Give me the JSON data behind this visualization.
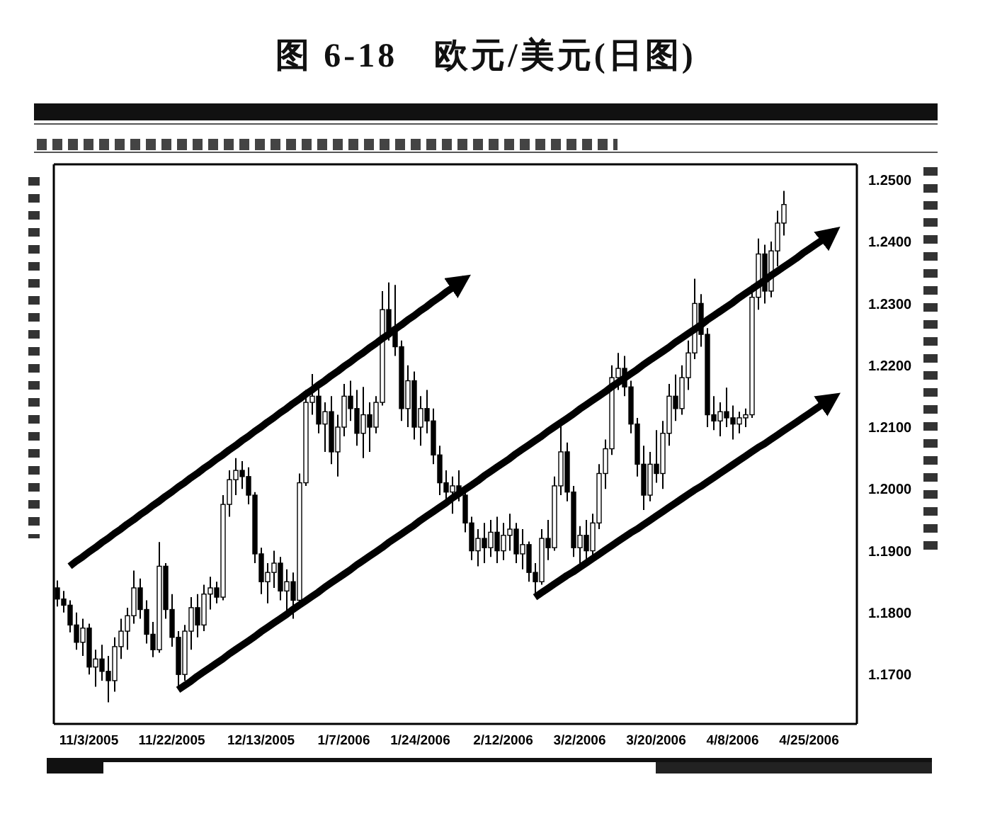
{
  "chart_data": {
    "type": "candlestick",
    "title": "图 6-18　欧元/美元(日图)",
    "color": "#000000",
    "categories": [
      null,
      null,
      null,
      null,
      null,
      "11/3/2005",
      null,
      null,
      null,
      null,
      null,
      null,
      null,
      null,
      null,
      null,
      null,
      null,
      "11/22/2005",
      null,
      null,
      null,
      null,
      null,
      null,
      null,
      null,
      null,
      null,
      null,
      null,
      null,
      "12/13/2005",
      null,
      null,
      null,
      null,
      null,
      null,
      null,
      null,
      null,
      null,
      null,
      null,
      "1/7/2006",
      null,
      null,
      null,
      null,
      null,
      null,
      null,
      null,
      null,
      null,
      null,
      "1/24/2006",
      null,
      null,
      null,
      null,
      null,
      null,
      null,
      null,
      null,
      null,
      null,
      null,
      "2/12/2006",
      null,
      null,
      null,
      null,
      null,
      null,
      null,
      null,
      null,
      null,
      null,
      "3/2/2006",
      null,
      null,
      null,
      null,
      null,
      null,
      null,
      null,
      null,
      null,
      null,
      "3/20/2006",
      null,
      null,
      null,
      null,
      null,
      null,
      null,
      null,
      null,
      null,
      null,
      "4/8/2006",
      null,
      null,
      null,
      null,
      null,
      null,
      null,
      null,
      null,
      null,
      null,
      "4/25/2006",
      null,
      null,
      null,
      null,
      null,
      null,
      null
    ],
    "ohlc": [
      [
        1.184,
        1.1852,
        1.181,
        1.1822
      ],
      [
        1.1822,
        1.1835,
        1.18,
        1.1812
      ],
      [
        1.1812,
        1.182,
        1.1768,
        1.178
      ],
      [
        1.178,
        1.18,
        1.174,
        1.1752
      ],
      [
        1.1752,
        1.179,
        1.173,
        1.1775
      ],
      [
        1.1775,
        1.1782,
        1.17,
        1.1712
      ],
      [
        1.1712,
        1.174,
        1.168,
        1.1725
      ],
      [
        1.1725,
        1.1748,
        1.169,
        1.1705
      ],
      [
        1.1705,
        1.173,
        1.1655,
        1.169
      ],
      [
        1.169,
        1.176,
        1.1672,
        1.1745
      ],
      [
        1.1745,
        1.179,
        1.1725,
        1.177
      ],
      [
        1.177,
        1.1808,
        1.174,
        1.1795
      ],
      [
        1.1795,
        1.1868,
        1.1782,
        1.184
      ],
      [
        1.184,
        1.1855,
        1.179,
        1.1805
      ],
      [
        1.1805,
        1.182,
        1.175,
        1.1765
      ],
      [
        1.1765,
        1.1785,
        1.1728,
        1.174
      ],
      [
        1.174,
        1.1914,
        1.1735,
        1.1875
      ],
      [
        1.1875,
        1.188,
        1.179,
        1.1805
      ],
      [
        1.1805,
        1.183,
        1.1745,
        1.176
      ],
      [
        1.176,
        1.177,
        1.1677,
        1.17
      ],
      [
        1.17,
        1.178,
        1.169,
        1.177
      ],
      [
        1.177,
        1.1825,
        1.174,
        1.1808
      ],
      [
        1.1808,
        1.183,
        1.176,
        1.178
      ],
      [
        1.178,
        1.1845,
        1.177,
        1.183
      ],
      [
        1.183,
        1.1858,
        1.1805,
        1.184
      ],
      [
        1.184,
        1.185,
        1.1815,
        1.1825
      ],
      [
        1.1825,
        1.199,
        1.182,
        1.1975
      ],
      [
        1.1975,
        1.203,
        1.1955,
        1.2015
      ],
      [
        1.2015,
        1.205,
        1.199,
        1.203
      ],
      [
        1.203,
        1.2045,
        1.2,
        1.202
      ],
      [
        1.202,
        1.2035,
        1.1975,
        1.199
      ],
      [
        1.199,
        1.1995,
        1.188,
        1.1895
      ],
      [
        1.1895,
        1.1905,
        1.183,
        1.185
      ],
      [
        1.185,
        1.188,
        1.1815,
        1.1865
      ],
      [
        1.1865,
        1.19,
        1.184,
        1.188
      ],
      [
        1.188,
        1.189,
        1.182,
        1.1835
      ],
      [
        1.1835,
        1.187,
        1.18,
        1.185
      ],
      [
        1.185,
        1.1865,
        1.179,
        1.182
      ],
      [
        1.182,
        1.2025,
        1.1815,
        1.201
      ],
      [
        1.201,
        1.216,
        1.2005,
        1.214
      ],
      [
        1.214,
        1.2186,
        1.212,
        1.215
      ],
      [
        1.215,
        1.2165,
        1.209,
        1.2105
      ],
      [
        1.2105,
        1.214,
        1.206,
        1.2125
      ],
      [
        1.2125,
        1.215,
        1.204,
        1.206
      ],
      [
        1.206,
        1.212,
        1.202,
        1.21
      ],
      [
        1.21,
        1.217,
        1.2085,
        1.215
      ],
      [
        1.215,
        1.2175,
        1.211,
        1.213
      ],
      [
        1.213,
        1.216,
        1.207,
        1.209
      ],
      [
        1.209,
        1.2165,
        1.205,
        1.212
      ],
      [
        1.212,
        1.214,
        1.206,
        1.21
      ],
      [
        1.21,
        1.215,
        1.209,
        1.214
      ],
      [
        1.214,
        1.232,
        1.2135,
        1.229
      ],
      [
        1.229,
        1.2334,
        1.224,
        1.2255
      ],
      [
        1.2255,
        1.233,
        1.2215,
        1.223
      ],
      [
        1.223,
        1.224,
        1.211,
        1.213
      ],
      [
        1.213,
        1.22,
        1.21,
        1.2175
      ],
      [
        1.2175,
        1.219,
        1.208,
        1.21
      ],
      [
        1.21,
        1.215,
        1.207,
        1.213
      ],
      [
        1.213,
        1.216,
        1.209,
        1.211
      ],
      [
        1.211,
        1.213,
        1.204,
        1.2055
      ],
      [
        1.2055,
        1.207,
        1.199,
        1.201
      ],
      [
        1.201,
        1.203,
        1.1975,
        1.1995
      ],
      [
        1.1995,
        1.202,
        1.196,
        1.2005
      ],
      [
        1.2005,
        1.203,
        1.198,
        1.199
      ],
      [
        1.199,
        1.2,
        1.193,
        1.1945
      ],
      [
        1.1945,
        1.1955,
        1.1885,
        1.19
      ],
      [
        1.19,
        1.1935,
        1.1875,
        1.192
      ],
      [
        1.192,
        1.1945,
        1.188,
        1.1905
      ],
      [
        1.1905,
        1.195,
        1.189,
        1.193
      ],
      [
        1.193,
        1.1955,
        1.188,
        1.19
      ],
      [
        1.19,
        1.1945,
        1.1885,
        1.1925
      ],
      [
        1.1925,
        1.196,
        1.19,
        1.1935
      ],
      [
        1.1935,
        1.1945,
        1.188,
        1.1895
      ],
      [
        1.1895,
        1.1935,
        1.187,
        1.191
      ],
      [
        1.191,
        1.1915,
        1.185,
        1.1865
      ],
      [
        1.1865,
        1.188,
        1.183,
        1.185
      ],
      [
        1.185,
        1.1935,
        1.1845,
        1.192
      ],
      [
        1.192,
        1.195,
        1.1885,
        1.1905
      ],
      [
        1.1905,
        1.202,
        1.19,
        1.2005
      ],
      [
        1.2005,
        1.2102,
        1.199,
        1.206
      ],
      [
        1.206,
        1.2075,
        1.198,
        1.1995
      ],
      [
        1.1995,
        1.2005,
        1.189,
        1.1905
      ],
      [
        1.1905,
        1.194,
        1.1875,
        1.1925
      ],
      [
        1.1925,
        1.195,
        1.188,
        1.19
      ],
      [
        1.19,
        1.196,
        1.189,
        1.1945
      ],
      [
        1.1945,
        1.204,
        1.1935,
        1.2025
      ],
      [
        1.2025,
        1.208,
        1.2,
        1.2065
      ],
      [
        1.2065,
        1.22,
        1.2055,
        1.218
      ],
      [
        1.218,
        1.222,
        1.216,
        1.2195
      ],
      [
        1.2195,
        1.2215,
        1.215,
        1.2165
      ],
      [
        1.2165,
        1.2175,
        1.209,
        1.2105
      ],
      [
        1.2105,
        1.2115,
        1.202,
        1.204
      ],
      [
        1.204,
        1.207,
        1.1966,
        1.199
      ],
      [
        1.199,
        1.206,
        1.198,
        1.204
      ],
      [
        1.204,
        1.2095,
        1.201,
        1.2025
      ],
      [
        1.2025,
        1.211,
        1.2,
        1.209
      ],
      [
        1.209,
        1.217,
        1.207,
        1.215
      ],
      [
        1.215,
        1.2185,
        1.211,
        1.213
      ],
      [
        1.213,
        1.22,
        1.212,
        1.218
      ],
      [
        1.218,
        1.224,
        1.216,
        1.222
      ],
      [
        1.222,
        1.234,
        1.221,
        1.23
      ],
      [
        1.23,
        1.2315,
        1.223,
        1.225
      ],
      [
        1.225,
        1.226,
        1.21,
        1.212
      ],
      [
        1.212,
        1.215,
        1.2095,
        1.211
      ],
      [
        1.211,
        1.214,
        1.2085,
        1.2125
      ],
      [
        1.2125,
        1.2164,
        1.21,
        1.2115
      ],
      [
        1.2115,
        1.2135,
        1.208,
        1.2105
      ],
      [
        1.2105,
        1.2125,
        1.209,
        1.2115
      ],
      [
        1.2115,
        1.213,
        1.21,
        1.212
      ],
      [
        1.212,
        1.233,
        1.2115,
        1.231
      ],
      [
        1.231,
        1.2405,
        1.229,
        1.238
      ],
      [
        1.238,
        1.2395,
        1.23,
        1.232
      ],
      [
        1.232,
        1.24,
        1.231,
        1.2385
      ],
      [
        1.2385,
        1.245,
        1.236,
        1.243
      ],
      [
        1.243,
        1.2482,
        1.241,
        1.246
      ],
      null,
      null,
      null,
      null,
      null,
      null,
      null,
      null,
      null,
      null,
      null
    ],
    "series": [
      {
        "type": "line",
        "color": "#000000",
        "values": [
          null,
          null,
          1.1875,
          1.1883,
          1.189,
          1.1898,
          1.1905,
          1.1913,
          1.192,
          1.1928,
          1.1935,
          1.1943,
          1.195,
          1.1958,
          1.1965,
          1.1973,
          1.198,
          1.1988,
          1.1995,
          1.2003,
          1.201,
          1.2018,
          1.2025,
          1.2033,
          1.204,
          1.2048,
          1.2055,
          1.2063,
          1.207,
          1.2078,
          1.2085,
          1.2093,
          1.21,
          1.2108,
          1.2115,
          1.2123,
          1.213,
          1.2138,
          1.2145,
          1.2153,
          1.216,
          1.2168,
          1.2175,
          1.2183,
          1.219,
          1.2198,
          1.2205,
          1.2213,
          1.222,
          1.2228,
          1.2235,
          1.2243,
          1.225,
          1.2258,
          1.2265,
          1.2273,
          1.228,
          1.2288,
          1.2295,
          1.2303,
          1.231,
          1.2318,
          1.2325,
          1.2333,
          1.234,
          null,
          null,
          null,
          null,
          null,
          null,
          null,
          null,
          null,
          null,
          null,
          null,
          null,
          null,
          null,
          null,
          null,
          null,
          null,
          null,
          null,
          null,
          null,
          null,
          null,
          null,
          null,
          null,
          null,
          null,
          null,
          null,
          null,
          null,
          null,
          null,
          null,
          null,
          null,
          null,
          null,
          null,
          null,
          null,
          null,
          null,
          null,
          null,
          null,
          null,
          null,
          null,
          null,
          null,
          null,
          null,
          null,
          null,
          null,
          null,
          null
        ]
      },
      {
        "type": "line",
        "color": "#000000",
        "values": [
          null,
          null,
          null,
          null,
          null,
          null,
          null,
          null,
          null,
          null,
          null,
          null,
          null,
          null,
          null,
          null,
          null,
          null,
          null,
          1.1675,
          1.1682,
          1.1689,
          1.1697,
          1.1704,
          1.1711,
          1.1718,
          1.1725,
          1.1733,
          1.174,
          1.1747,
          1.1754,
          1.1761,
          1.1769,
          1.1776,
          1.1783,
          1.179,
          1.1797,
          1.1805,
          1.1812,
          1.1819,
          1.1826,
          1.1833,
          1.1841,
          1.1848,
          1.1855,
          1.1862,
          1.1869,
          1.1877,
          1.1884,
          1.1891,
          1.1898,
          1.1905,
          1.1913,
          1.192,
          1.1927,
          1.1934,
          1.1941,
          1.1949,
          1.1956,
          1.1963,
          1.197,
          1.1977,
          1.1985,
          1.1992,
          1.1999,
          1.2006,
          1.2013,
          1.2021,
          1.2028,
          1.2035,
          1.2042,
          1.2049,
          1.2057,
          1.2064,
          1.2071,
          1.2078,
          1.2085,
          1.2093,
          1.21,
          1.2107,
          1.2114,
          1.2121,
          1.2129,
          1.2136,
          1.2143,
          1.215,
          1.2157,
          1.2165,
          1.2172,
          1.2179,
          1.2186,
          1.2193,
          1.2201,
          1.2208,
          1.2215,
          1.2222,
          1.2229,
          1.2237,
          1.2244,
          1.2251,
          1.2258,
          1.2265,
          1.2273,
          1.228,
          1.2287,
          1.2294,
          1.2301,
          1.2309,
          1.2316,
          1.2323,
          1.233,
          1.2337,
          1.2345,
          1.2352,
          1.2359,
          1.2366,
          1.2373,
          1.2381,
          1.2388,
          1.2395,
          1.2402,
          1.2409,
          1.2417,
          null,
          null,
          null
        ]
      },
      {
        "type": "line",
        "color": "#000000",
        "values": [
          null,
          null,
          null,
          null,
          null,
          null,
          null,
          null,
          null,
          null,
          null,
          null,
          null,
          null,
          null,
          null,
          null,
          null,
          null,
          null,
          null,
          null,
          null,
          null,
          null,
          null,
          null,
          null,
          null,
          null,
          null,
          null,
          null,
          null,
          null,
          null,
          null,
          null,
          null,
          null,
          null,
          null,
          null,
          null,
          null,
          null,
          null,
          null,
          null,
          null,
          null,
          null,
          null,
          null,
          null,
          null,
          null,
          null,
          null,
          null,
          null,
          null,
          null,
          null,
          null,
          null,
          null,
          null,
          null,
          null,
          null,
          null,
          null,
          null,
          null,
          1.1825,
          1.1832,
          1.1839,
          1.1846,
          1.1853,
          1.186,
          1.1866,
          1.1873,
          1.188,
          1.1887,
          1.1894,
          1.1901,
          1.1908,
          1.1915,
          1.1922,
          1.1929,
          1.1935,
          1.1942,
          1.1949,
          1.1956,
          1.1963,
          1.197,
          1.1977,
          1.1984,
          1.1991,
          1.1998,
          1.2004,
          1.2011,
          1.2018,
          1.2025,
          1.2032,
          1.2039,
          1.2046,
          1.2053,
          1.206,
          1.2067,
          1.2073,
          1.208,
          1.2087,
          1.2094,
          1.2101,
          1.2108,
          1.2115,
          1.2122,
          1.2129,
          1.2136,
          1.2142,
          1.2149,
          null,
          null,
          null
        ]
      }
    ],
    "ylim": [
      1.162,
      1.2525
    ],
    "yticks": [
      {
        "value": 1.17,
        "label": "1.1700"
      },
      {
        "value": 1.18,
        "label": "1.1800"
      },
      {
        "value": 1.19,
        "label": "1.1900"
      },
      {
        "value": 1.2,
        "label": "1.2000"
      },
      {
        "value": 1.21,
        "label": "1.2100"
      },
      {
        "value": 1.22,
        "label": "1.2200"
      },
      {
        "value": 1.23,
        "label": "1.2300"
      },
      {
        "value": 1.24,
        "label": "1.2400"
      },
      {
        "value": 1.25,
        "label": "1.2500"
      }
    ]
  }
}
